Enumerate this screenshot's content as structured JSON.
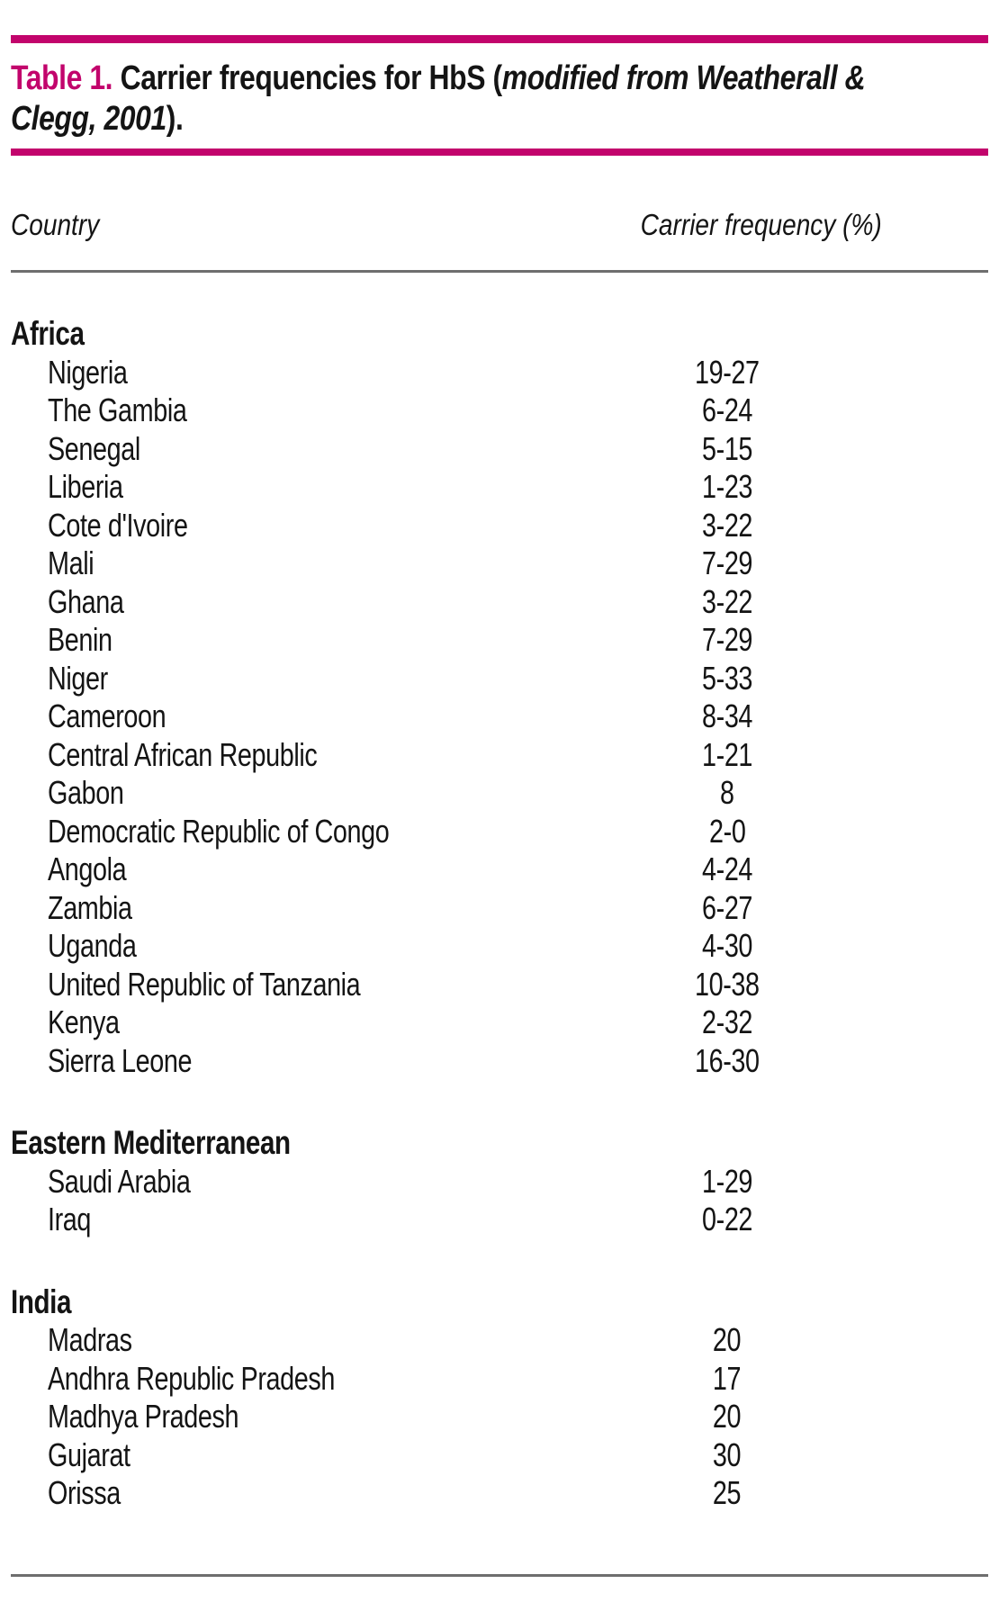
{
  "title": {
    "label": "Table 1.",
    "rest": " Carrier frequencies for HbS (",
    "italic_line1": "modified from Weatherall &",
    "italic_line2": "Clegg, 2001",
    "close": ")."
  },
  "columns": {
    "country": "Country",
    "frequency": "Carrier frequency (%)"
  },
  "sections": [
    {
      "name": "Africa",
      "rows": [
        {
          "country": "Nigeria",
          "frequency": "19-27"
        },
        {
          "country": "The Gambia",
          "frequency": "6-24"
        },
        {
          "country": "Senegal",
          "frequency": "5-15"
        },
        {
          "country": "Liberia",
          "frequency": "1-23"
        },
        {
          "country": "Cote d'Ivoire",
          "frequency": "3-22"
        },
        {
          "country": "Mali",
          "frequency": "7-29"
        },
        {
          "country": "Ghana",
          "frequency": "3-22"
        },
        {
          "country": "Benin",
          "frequency": "7-29"
        },
        {
          "country": "Niger",
          "frequency": "5-33"
        },
        {
          "country": "Cameroon",
          "frequency": "8-34"
        },
        {
          "country": "Central African Republic",
          "frequency": "1-21"
        },
        {
          "country": "Gabon",
          "frequency": "8"
        },
        {
          "country": "Democratic Republic of Congo",
          "frequency": "2-0"
        },
        {
          "country": "Angola",
          "frequency": "4-24"
        },
        {
          "country": "Zambia",
          "frequency": "6-27"
        },
        {
          "country": "Uganda",
          "frequency": "4-30"
        },
        {
          "country": "United Republic of Tanzania",
          "frequency": "10-38"
        },
        {
          "country": "Kenya",
          "frequency": "2-32"
        },
        {
          "country": "Sierra Leone",
          "frequency": "16-30"
        }
      ]
    },
    {
      "name": "Eastern Mediterranean",
      "rows": [
        {
          "country": "Saudi Arabia",
          "frequency": "1-29"
        },
        {
          "country": "Iraq",
          "frequency": "0-22"
        }
      ]
    },
    {
      "name": "India",
      "rows": [
        {
          "country": "Madras",
          "frequency": "20"
        },
        {
          "country": "Andhra Republic Pradesh",
          "frequency": "17"
        },
        {
          "country": "Madhya Pradesh",
          "frequency": "20"
        },
        {
          "country": "Gujarat",
          "frequency": "30"
        },
        {
          "country": "Orissa",
          "frequency": "25"
        }
      ]
    }
  ],
  "colors": {
    "accent": "#C2046C",
    "rule_gray": "#6e6e6e",
    "text": "#141414"
  }
}
